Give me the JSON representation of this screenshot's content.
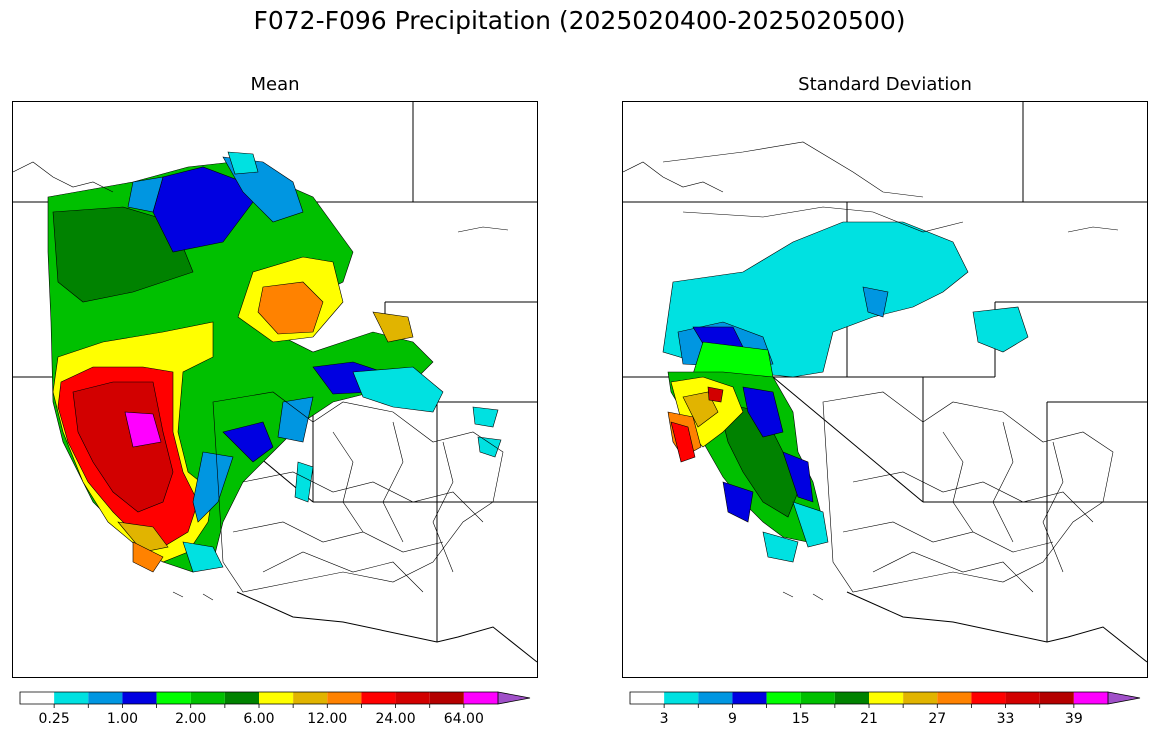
{
  "title": "F072-F096 Precipitation (2025020400-2025020500)",
  "panels": [
    {
      "name": "mean",
      "title": "Mean",
      "colorbar": {
        "colors": [
          "#ffffff",
          "#00e1e1",
          "#0096e1",
          "#0000e1",
          "#00ff00",
          "#00c000",
          "#008200",
          "#ffff00",
          "#e1b400",
          "#ff8200",
          "#ff0000",
          "#d20000",
          "#b40000",
          "#ff00ff",
          "#a050c8"
        ],
        "extend": "max",
        "tick_labels": [
          "0.25",
          "1.00",
          "2.00",
          "6.00",
          "12.00",
          "24.00",
          "64.00"
        ]
      }
    },
    {
      "name": "standard-deviation",
      "title": "Standard Deviation",
      "colorbar": {
        "colors": [
          "#ffffff",
          "#00e1e1",
          "#0096e1",
          "#0000e1",
          "#00ff00",
          "#00c000",
          "#008200",
          "#ffff00",
          "#e1b400",
          "#ff8200",
          "#ff0000",
          "#d20000",
          "#b40000",
          "#ff00ff",
          "#a050c8"
        ],
        "extend": "max",
        "tick_labels": [
          "3",
          "9",
          "15",
          "21",
          "27",
          "33",
          "39"
        ]
      }
    }
  ]
}
